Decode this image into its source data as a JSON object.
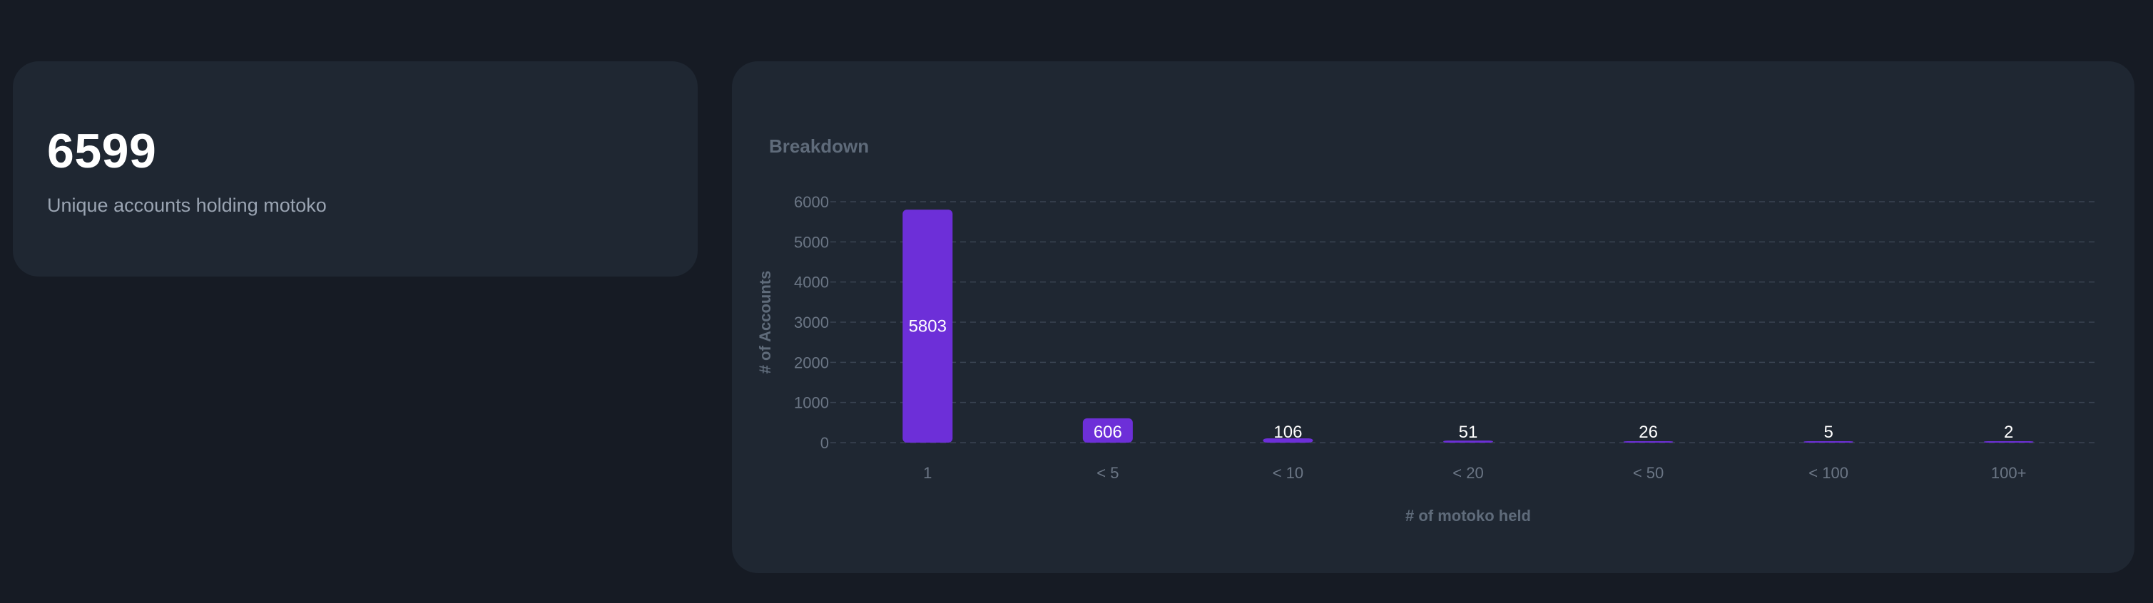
{
  "stat": {
    "value": "6599",
    "label": "Unique accounts holding motoko"
  },
  "chart_data": {
    "type": "bar",
    "title": "Breakdown",
    "xlabel": "# of motoko held",
    "ylabel": "# of Accounts",
    "categories": [
      "1",
      "< 5",
      "< 10",
      "< 20",
      "< 50",
      "< 100",
      "100+"
    ],
    "values": [
      5803,
      606,
      106,
      51,
      26,
      5,
      2
    ],
    "ylim": [
      0,
      6000
    ],
    "yticks": [
      0,
      1000,
      2000,
      3000,
      4000,
      5000,
      6000
    ],
    "grid": true,
    "bar_color": "#6d2fd8"
  }
}
